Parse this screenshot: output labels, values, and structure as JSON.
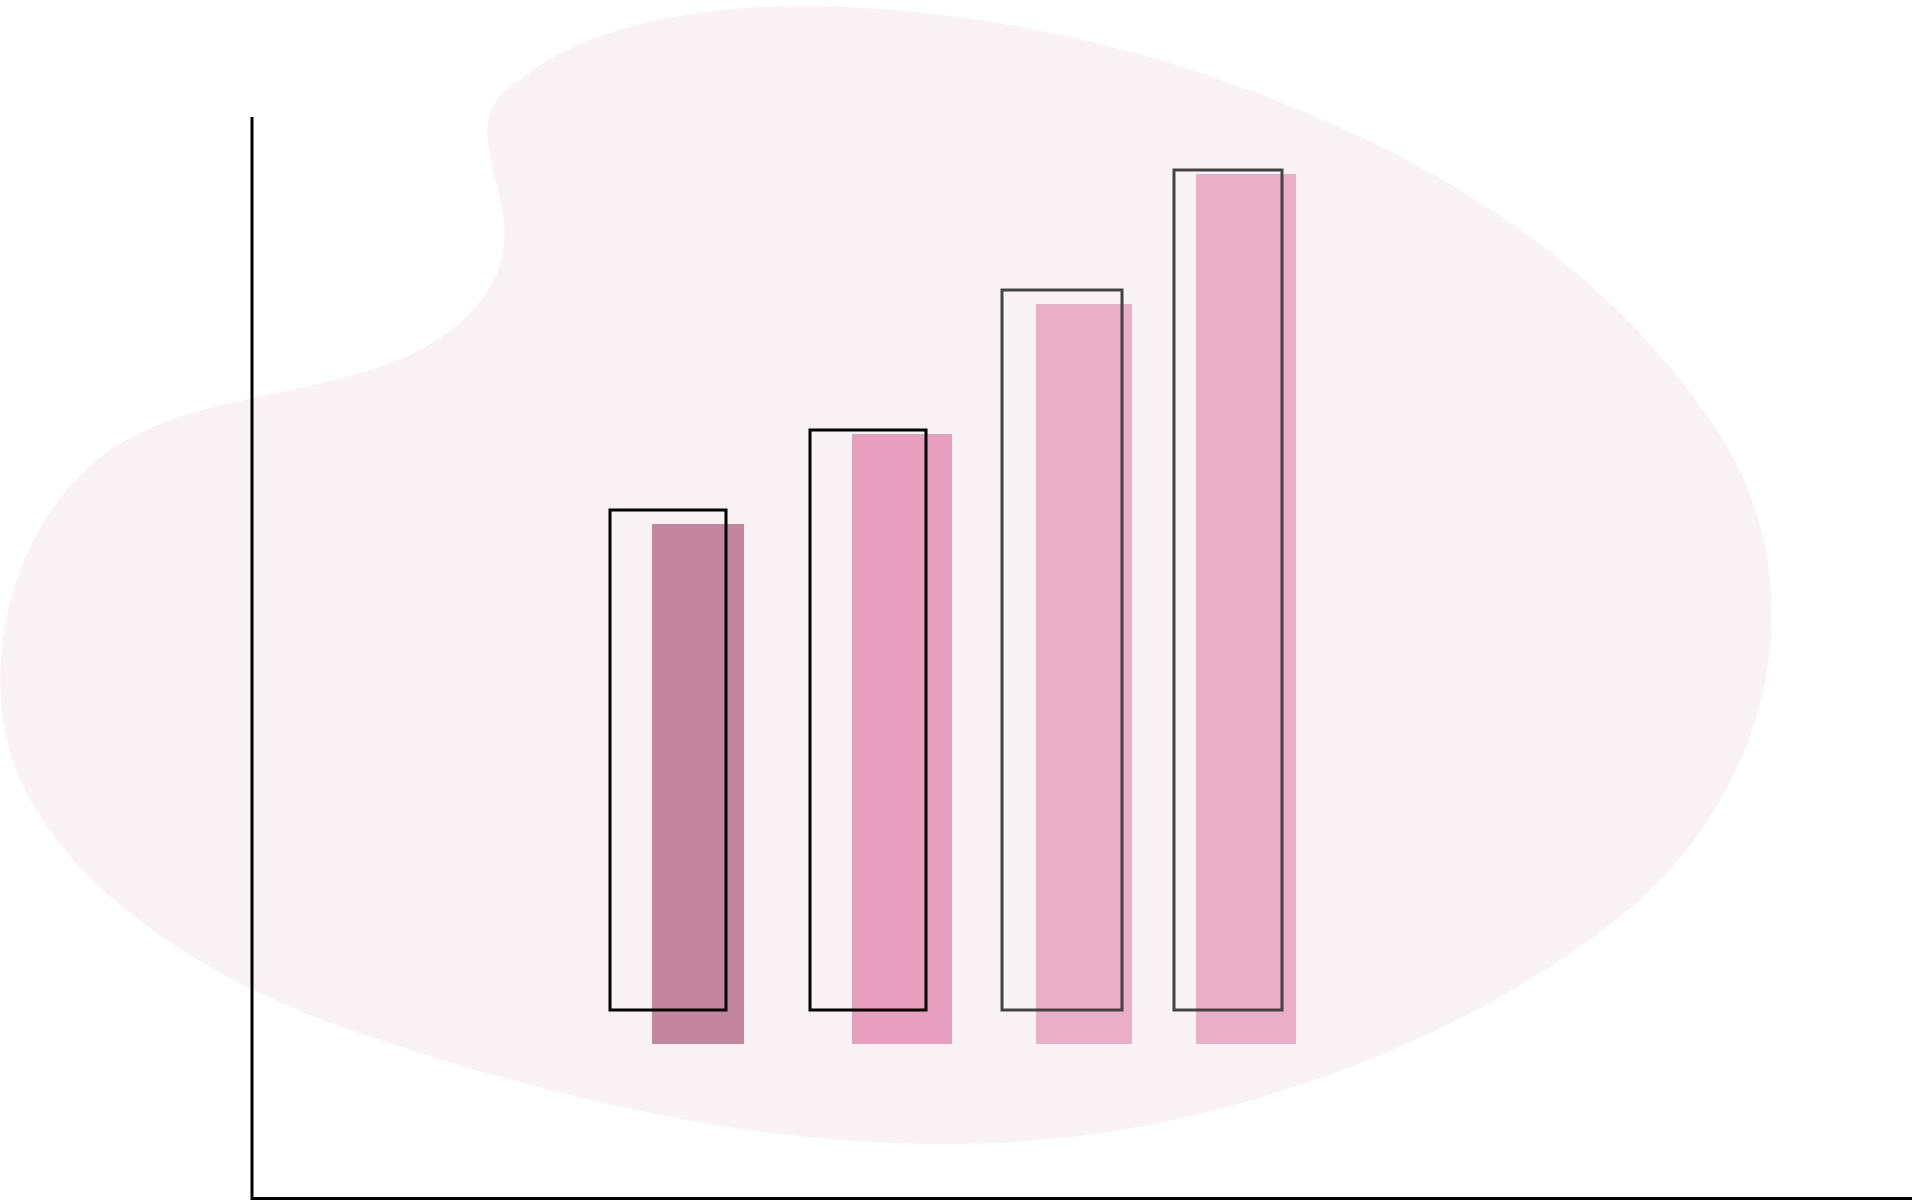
{
  "chart_data": {
    "type": "bar",
    "style": "decorative illustration, no text",
    "title": "",
    "xlabel": "",
    "ylabel": "",
    "grid": false,
    "legend": "none",
    "categories": [
      "",
      "",
      "",
      ""
    ],
    "ylim": [
      0,
      100
    ],
    "series": [
      {
        "role": "filled bars",
        "values": [
          52,
          61,
          74,
          87
        ],
        "colors": [
          "#c4869f",
          "#e69fbc",
          "#eaaec6",
          "#eaaec6"
        ]
      },
      {
        "role": "outline bars",
        "values": [
          50,
          58,
          72,
          84
        ],
        "colors": [
          "#000000",
          "#000000",
          "#444444",
          "#444444"
        ]
      }
    ],
    "colors": {
      "background_blob": "#f9f3f6",
      "axis": "#000000"
    }
  }
}
